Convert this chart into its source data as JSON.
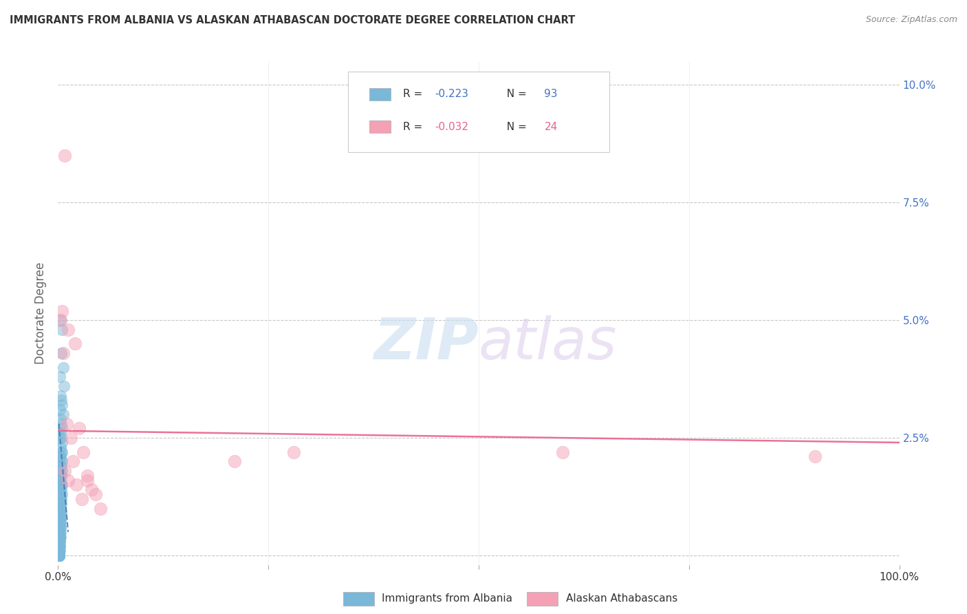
{
  "title": "IMMIGRANTS FROM ALBANIA VS ALASKAN ATHABASCAN DOCTORATE DEGREE CORRELATION CHART",
  "source": "Source: ZipAtlas.com",
  "ylabel": "Doctorate Degree",
  "xlim": [
    0,
    1.0
  ],
  "ylim": [
    -0.002,
    0.105
  ],
  "xticks": [
    0,
    0.25,
    0.5,
    0.75,
    1.0
  ],
  "xticklabels": [
    "0.0%",
    "",
    "",
    "",
    "100.0%"
  ],
  "yticks": [
    0,
    0.025,
    0.05,
    0.075,
    0.1
  ],
  "yticklabels": [
    "",
    "2.5%",
    "5.0%",
    "7.5%",
    "10.0%"
  ],
  "legend_r1": "R = ",
  "legend_v1": "-0.223",
  "legend_n1_label": "N = ",
  "legend_n1_val": "93",
  "legend_r2": "R = ",
  "legend_v2": "-0.032",
  "legend_n2_label": "N = ",
  "legend_n2_val": "24",
  "blue_color": "#7ab8d9",
  "pink_color": "#f4a0b5",
  "trendline_blue_color": "#3a7ab5",
  "trendline_pink_color": "#e8638a",
  "watermark_zip": "ZIP",
  "watermark_atlas": "atlas",
  "background_color": "#ffffff",
  "grid_color": "#c8c8c8",
  "title_color": "#333333",
  "axis_label_color": "#666666",
  "right_axis_color": "#4472c4",
  "blue_scatter_x": [
    0.003,
    0.005,
    0.004,
    0.006,
    0.002,
    0.007,
    0.003,
    0.004,
    0.005,
    0.002,
    0.006,
    0.003,
    0.004,
    0.005,
    0.003,
    0.004,
    0.002,
    0.005,
    0.003,
    0.004,
    0.005,
    0.002,
    0.003,
    0.004,
    0.005,
    0.003,
    0.004,
    0.002,
    0.005,
    0.003,
    0.004,
    0.002,
    0.003,
    0.004,
    0.005,
    0.003,
    0.002,
    0.004,
    0.003,
    0.005,
    0.002,
    0.004,
    0.003,
    0.002,
    0.004,
    0.003,
    0.002,
    0.003,
    0.004,
    0.002,
    0.003,
    0.002,
    0.003,
    0.004,
    0.002,
    0.003,
    0.002,
    0.003,
    0.002,
    0.003,
    0.002,
    0.003,
    0.001,
    0.002,
    0.003,
    0.001,
    0.002,
    0.001,
    0.002,
    0.001,
    0.002,
    0.001,
    0.002,
    0.001,
    0.002,
    0.001,
    0.001,
    0.001,
    0.002,
    0.001,
    0.001,
    0.001,
    0.001,
    0.001,
    0.001,
    0.001,
    0.001,
    0.001,
    0.001,
    0.001,
    0.001,
    0.001,
    0.001
  ],
  "blue_scatter_y": [
    0.05,
    0.048,
    0.043,
    0.04,
    0.038,
    0.036,
    0.034,
    0.033,
    0.032,
    0.031,
    0.03,
    0.029,
    0.028,
    0.027,
    0.026,
    0.025,
    0.025,
    0.024,
    0.023,
    0.022,
    0.022,
    0.021,
    0.021,
    0.02,
    0.02,
    0.019,
    0.019,
    0.018,
    0.018,
    0.017,
    0.017,
    0.016,
    0.016,
    0.015,
    0.015,
    0.015,
    0.014,
    0.014,
    0.013,
    0.013,
    0.013,
    0.012,
    0.012,
    0.011,
    0.011,
    0.011,
    0.01,
    0.01,
    0.009,
    0.009,
    0.009,
    0.008,
    0.008,
    0.008,
    0.007,
    0.007,
    0.007,
    0.006,
    0.006,
    0.006,
    0.005,
    0.005,
    0.005,
    0.004,
    0.004,
    0.004,
    0.004,
    0.003,
    0.003,
    0.003,
    0.003,
    0.002,
    0.002,
    0.002,
    0.002,
    0.002,
    0.001,
    0.001,
    0.001,
    0.001,
    0.001,
    0.001,
    0.001,
    0.001,
    0.0,
    0.0,
    0.0,
    0.0,
    0.0,
    0.0,
    0.0,
    0.0,
    0.0
  ],
  "pink_scatter_x": [
    0.008,
    0.005,
    0.003,
    0.012,
    0.02,
    0.006,
    0.01,
    0.025,
    0.015,
    0.03,
    0.018,
    0.008,
    0.035,
    0.012,
    0.022,
    0.04,
    0.045,
    0.028,
    0.05,
    0.035,
    0.21,
    0.28,
    0.6,
    0.9
  ],
  "pink_scatter_y": [
    0.085,
    0.052,
    0.05,
    0.048,
    0.045,
    0.043,
    0.028,
    0.027,
    0.025,
    0.022,
    0.02,
    0.018,
    0.017,
    0.016,
    0.015,
    0.014,
    0.013,
    0.012,
    0.01,
    0.016,
    0.02,
    0.022,
    0.022,
    0.021
  ],
  "blue_trend_x0": 0.001,
  "blue_trend_x1": 0.012,
  "blue_trend_y0": 0.028,
  "blue_trend_y1": 0.005,
  "pink_trend_x0": 0.001,
  "pink_trend_x1": 1.0,
  "pink_trend_y0": 0.0265,
  "pink_trend_y1": 0.024
}
